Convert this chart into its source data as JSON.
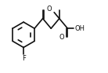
{
  "bg_color": "#ffffff",
  "line_color": "#111111",
  "line_width": 1.2,
  "figsize": [
    1.38,
    0.93
  ],
  "dpi": 100,
  "F_label": "F",
  "O_label": "O",
  "OH_label": "OH"
}
